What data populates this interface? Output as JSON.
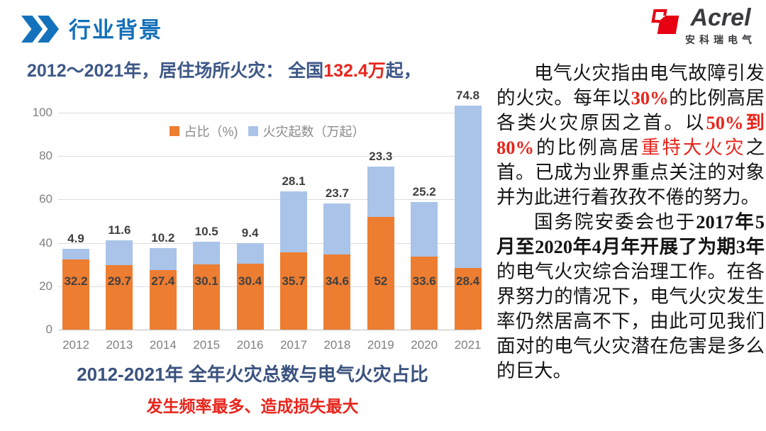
{
  "header": {
    "title": "行业背景",
    "logo": {
      "brand": "Acrel",
      "subtitle": "安科瑞电气"
    }
  },
  "chart": {
    "title_prefix": "2012～2021年，居住场所火灾： 全国",
    "title_highlight": "132.4万",
    "title_suffix": "起，",
    "caption": "2012-2021年 全年火灾总数与电气火灾占比",
    "subcaption": "发生频率最多、造成损失最大"
  },
  "chart_data": {
    "type": "bar",
    "stacked": true,
    "title": "2012-2021年 全年火灾总数与电气火灾占比",
    "categories": [
      "2012",
      "2013",
      "2014",
      "2015",
      "2016",
      "2017",
      "2018",
      "2019",
      "2020",
      "2021"
    ],
    "series": [
      {
        "name": "占比（%)",
        "color": "#ED7D31",
        "values": [
          32.2,
          29.7,
          27.4,
          30.1,
          30.4,
          35.7,
          34.6,
          52,
          33.6,
          28.4
        ]
      },
      {
        "name": "火灾起数（万起）",
        "color": "#A9C4E8",
        "values": [
          4.9,
          11.6,
          10.2,
          10.5,
          9.4,
          28.1,
          23.7,
          23.3,
          25.2,
          74.8
        ]
      }
    ],
    "xlabel": "",
    "ylabel": "",
    "ylim": [
      0,
      100
    ],
    "yticks": [
      0,
      20,
      40,
      60,
      80,
      100
    ],
    "grid": true,
    "legend_position": "top-center"
  },
  "article": {
    "paragraphs": [
      {
        "segments": [
          {
            "text": "电气火灾指由电气故障引发的火灾。每年以",
            "style": "normal"
          },
          {
            "text": "30%",
            "style": "red-bold"
          },
          {
            "text": "的比例高居各类火灾原因之首。以",
            "style": "normal"
          },
          {
            "text": "50%到80%",
            "style": "red-bold"
          },
          {
            "text": "的比例高居",
            "style": "normal"
          },
          {
            "text": "重特大火灾",
            "style": "red"
          },
          {
            "text": "之首。已成为业界重点关注的对象并为此进行着孜孜不倦的努力。",
            "style": "normal"
          }
        ]
      },
      {
        "segments": [
          {
            "text": "国务院安委会也于",
            "style": "normal"
          },
          {
            "text": "2017年5月至2020年4月年开展了为期3年",
            "style": "bold"
          },
          {
            "text": "的电气火灾综合治理工作。在各界努力的情况下，电气火灾发生率仍然居高不下，由此可见我们面对的电气火灾潜在危害是多么的巨大。",
            "style": "normal"
          }
        ]
      }
    ]
  },
  "colors": {
    "accent_blue": "#1470B8",
    "chart_title_blue": "#3D5787",
    "highlight_red": "#E8251C",
    "logo_red": "#E60012",
    "bar_orange": "#ED7D31",
    "bar_blue": "#A9C4E8"
  }
}
